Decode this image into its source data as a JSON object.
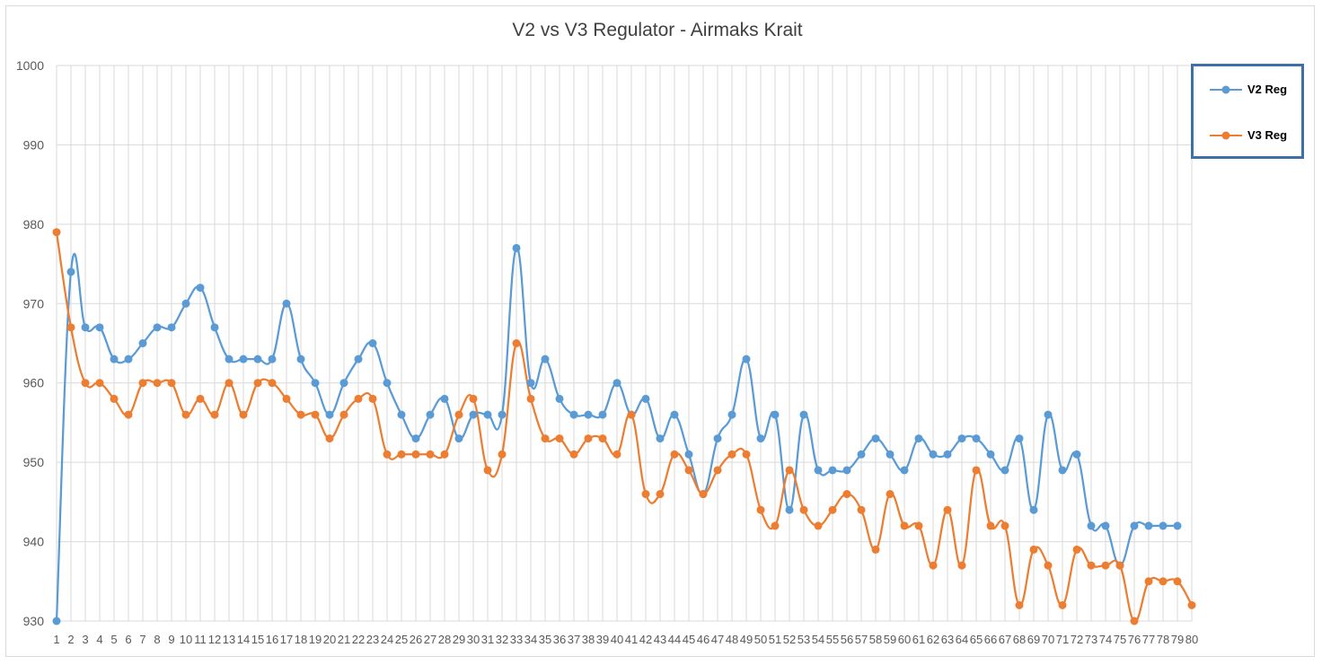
{
  "chart_data": {
    "type": "line",
    "title": "V2 vs V3 Regulator - Airmaks Krait",
    "xlabel": "",
    "ylabel": "",
    "ylim": [
      930,
      1000
    ],
    "yticks": [
      930,
      940,
      950,
      960,
      970,
      980,
      990,
      1000
    ],
    "grid": true,
    "legend_position": "top-right",
    "x": [
      1,
      2,
      3,
      4,
      5,
      6,
      7,
      8,
      9,
      10,
      11,
      12,
      13,
      14,
      15,
      16,
      17,
      18,
      19,
      20,
      21,
      22,
      23,
      24,
      25,
      26,
      27,
      28,
      29,
      30,
      31,
      32,
      33,
      34,
      35,
      36,
      37,
      38,
      39,
      40,
      41,
      42,
      43,
      44,
      45,
      46,
      47,
      48,
      49,
      50,
      51,
      52,
      53,
      54,
      55,
      56,
      57,
      58,
      59,
      60,
      61,
      62,
      63,
      64,
      65,
      66,
      67,
      68,
      69,
      70,
      71,
      72,
      73,
      74,
      75,
      76,
      77,
      78,
      79,
      80
    ],
    "series": [
      {
        "name": "V2 Reg",
        "color": "#5b9bd5",
        "values": [
          930,
          974,
          967,
          967,
          963,
          963,
          965,
          967,
          967,
          970,
          972,
          967,
          963,
          963,
          963,
          963,
          970,
          963,
          960,
          956,
          960,
          963,
          965,
          960,
          956,
          953,
          956,
          958,
          953,
          956,
          956,
          956,
          977,
          960,
          963,
          958,
          956,
          956,
          956,
          960,
          956,
          958,
          953,
          956,
          951,
          946,
          953,
          956,
          963,
          953,
          956,
          944,
          956,
          949,
          949,
          949,
          951,
          953,
          951,
          949,
          953,
          951,
          951,
          953,
          953,
          951,
          949,
          953,
          944,
          956,
          949,
          951,
          942,
          942,
          937,
          942,
          942,
          942,
          942,
          null
        ]
      },
      {
        "name": "V3 Reg",
        "color": "#ed7d31",
        "values": [
          979,
          967,
          960,
          960,
          958,
          956,
          960,
          960,
          960,
          956,
          958,
          956,
          960,
          956,
          960,
          960,
          958,
          956,
          956,
          953,
          956,
          958,
          958,
          951,
          951,
          951,
          951,
          951,
          956,
          958,
          949,
          951,
          965,
          958,
          953,
          953,
          951,
          953,
          953,
          951,
          956,
          946,
          946,
          951,
          949,
          946,
          949,
          951,
          951,
          944,
          942,
          949,
          944,
          942,
          944,
          946,
          944,
          939,
          946,
          942,
          942,
          937,
          944,
          937,
          949,
          942,
          942,
          932,
          939,
          937,
          932,
          939,
          937,
          937,
          937,
          930,
          935,
          935,
          935,
          932
        ]
      }
    ]
  }
}
